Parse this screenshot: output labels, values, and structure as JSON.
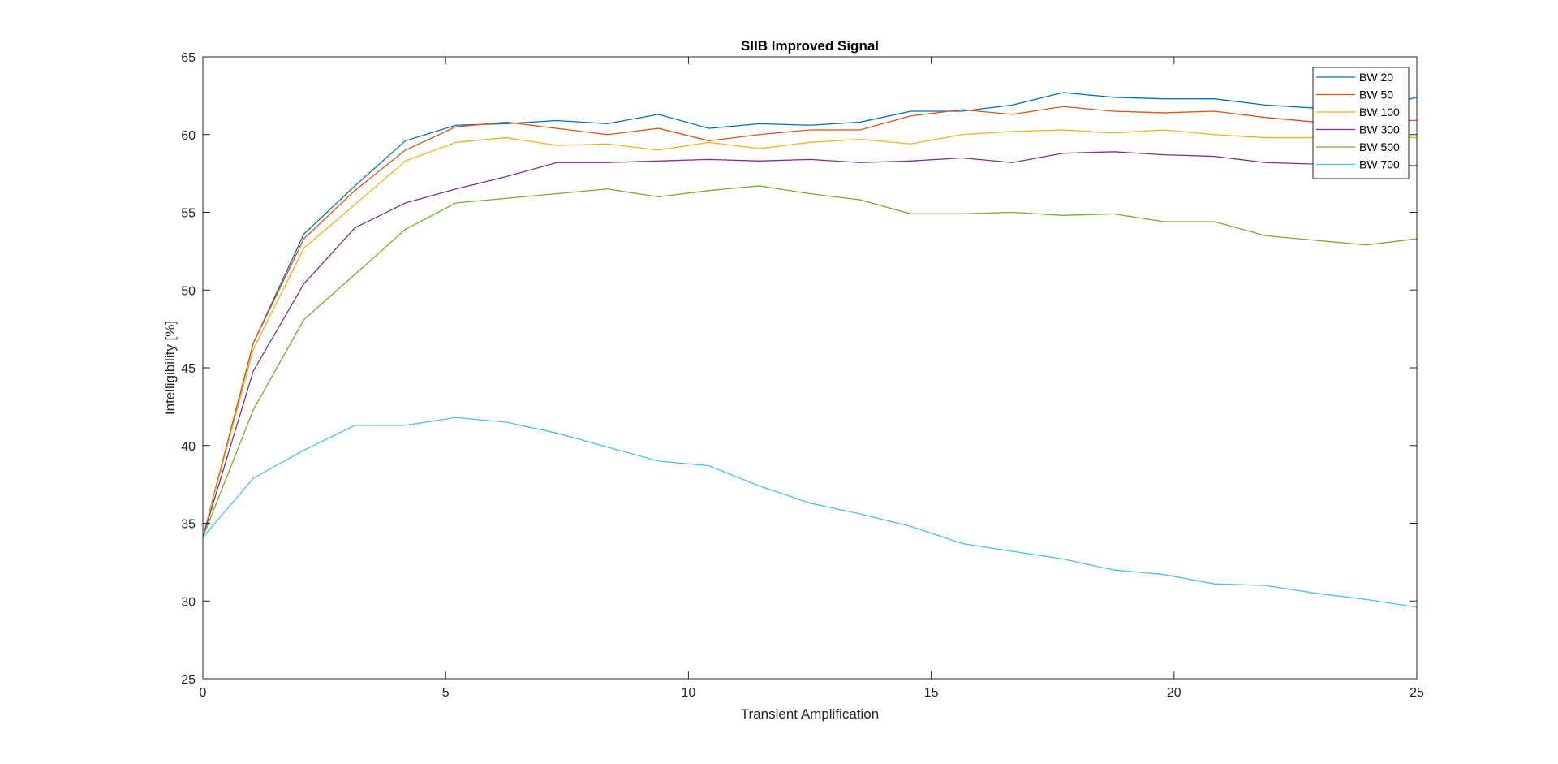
{
  "chart_data": {
    "type": "line",
    "title": "SIIB Improved Signal",
    "xlabel": "Transient Amplification",
    "ylabel": "Intelligibility [%]",
    "xlim": [
      0,
      25
    ],
    "ylim": [
      25,
      65
    ],
    "xticks": [
      0,
      5,
      10,
      15,
      20,
      25
    ],
    "yticks": [
      25,
      30,
      35,
      40,
      45,
      50,
      55,
      60,
      65
    ],
    "grid": false,
    "legend_position": "top-right",
    "x": [
      0,
      1.04,
      2.08,
      3.13,
      4.17,
      5.21,
      6.25,
      7.29,
      8.33,
      9.38,
      10.42,
      11.46,
      12.5,
      13.54,
      14.58,
      15.63,
      16.67,
      17.71,
      18.75,
      19.79,
      20.83,
      21.88,
      22.92,
      23.96,
      25
    ],
    "series": [
      {
        "name": "BW 20",
        "color": "#0072BD",
        "values": [
          34.1,
          46.6,
          53.6,
          56.7,
          59.6,
          60.6,
          60.7,
          60.9,
          60.7,
          61.3,
          60.4,
          60.7,
          60.6,
          60.8,
          61.5,
          61.5,
          61.9,
          62.7,
          62.4,
          62.3,
          62.3,
          61.9,
          61.7,
          61.6,
          62.4
        ]
      },
      {
        "name": "BW 50",
        "color": "#D95319",
        "values": [
          34.1,
          46.6,
          53.3,
          56.4,
          59.0,
          60.5,
          60.8,
          60.4,
          60.0,
          60.4,
          59.6,
          60.0,
          60.3,
          60.3,
          61.2,
          61.6,
          61.3,
          61.8,
          61.5,
          61.4,
          61.5,
          61.1,
          60.8,
          61.0,
          60.9
        ]
      },
      {
        "name": "BW 100",
        "color": "#EDB120",
        "values": [
          34.1,
          46.2,
          52.7,
          55.5,
          58.3,
          59.5,
          59.8,
          59.3,
          59.4,
          59.0,
          59.5,
          59.1,
          59.5,
          59.7,
          59.4,
          60.0,
          60.2,
          60.3,
          60.1,
          60.3,
          60.0,
          59.8,
          59.8,
          59.9,
          59.8
        ]
      },
      {
        "name": "BW 300",
        "color": "#7E2F8E",
        "values": [
          34.1,
          44.8,
          50.4,
          54.0,
          55.6,
          56.5,
          57.3,
          58.2,
          58.2,
          58.3,
          58.4,
          58.3,
          58.4,
          58.2,
          58.3,
          58.5,
          58.2,
          58.8,
          58.9,
          58.7,
          58.6,
          58.2,
          58.1,
          58.0,
          58.0
        ]
      },
      {
        "name": "BW 500",
        "color": "#77AC30",
        "values": [
          34.1,
          42.3,
          48.1,
          51.0,
          53.9,
          55.6,
          55.9,
          56.2,
          56.5,
          56.0,
          56.4,
          56.7,
          56.2,
          55.8,
          54.9,
          54.9,
          55.0,
          54.8,
          54.9,
          54.4,
          54.4,
          53.5,
          53.2,
          52.9,
          53.3
        ]
      },
      {
        "name": "BW 700",
        "color": "#4DBEEE",
        "values": [
          34.1,
          37.9,
          39.7,
          41.3,
          41.3,
          41.8,
          41.5,
          40.8,
          39.9,
          39.0,
          38.7,
          37.4,
          36.3,
          35.6,
          34.8,
          33.7,
          33.2,
          32.7,
          32.0,
          31.7,
          31.1,
          31.0,
          30.5,
          30.1,
          29.6
        ]
      }
    ]
  }
}
